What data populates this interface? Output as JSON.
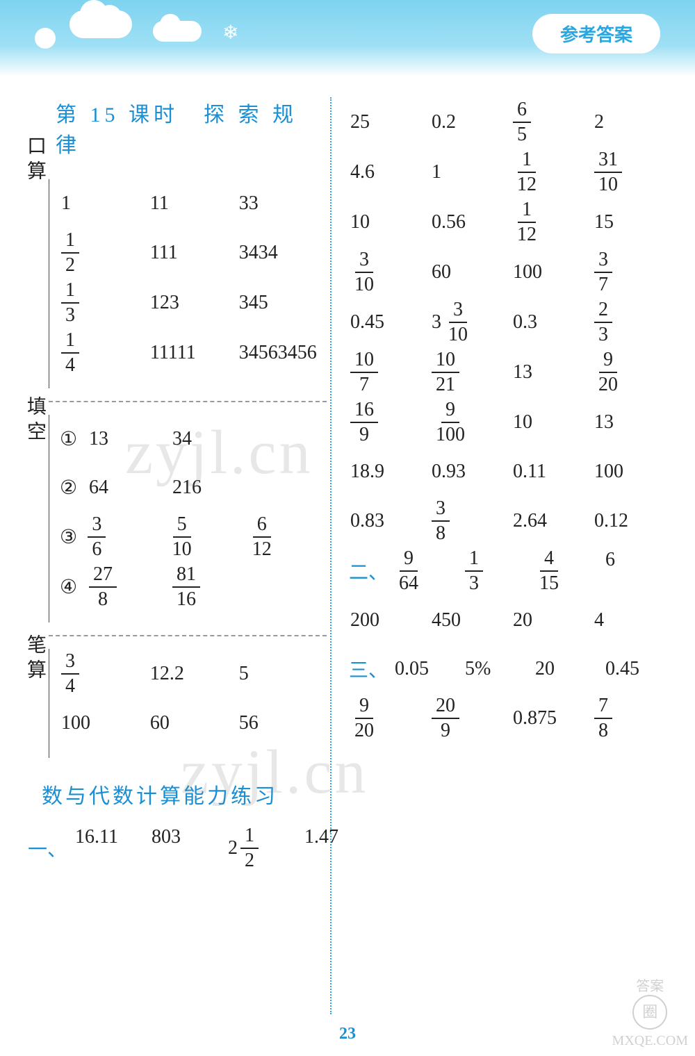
{
  "header": {
    "badge": "参考答案"
  },
  "left": {
    "lesson_title": "第 15 课时　探 索 规 律",
    "labels": {
      "kousuan": "口算",
      "tiankong": "填空",
      "bisuan": "笔算"
    },
    "kousuan": [
      [
        "1",
        "11",
        "33"
      ],
      [
        {
          "n": "1",
          "d": "2"
        },
        "111",
        "3434"
      ],
      [
        {
          "n": "1",
          "d": "3"
        },
        "123",
        "345"
      ],
      [
        {
          "n": "1",
          "d": "4"
        },
        "11111",
        "34563456"
      ]
    ],
    "tiankong": [
      {
        "marker": "①",
        "cells": [
          "13",
          "34"
        ]
      },
      {
        "marker": "②",
        "cells": [
          "64",
          "216"
        ]
      },
      {
        "marker": "③",
        "cells": [
          {
            "n": "3",
            "d": "6"
          },
          {
            "n": "5",
            "d": "10"
          },
          {
            "n": "6",
            "d": "12"
          }
        ]
      },
      {
        "marker": "④",
        "cells": [
          {
            "n": "27",
            "d": "8"
          },
          {
            "n": "81",
            "d": "16"
          }
        ]
      }
    ],
    "bisuan": [
      [
        {
          "n": "3",
          "d": "4"
        },
        "12.2",
        "5"
      ],
      [
        "100",
        "60",
        "56"
      ]
    ],
    "sub_title": "数与代数计算能力练习",
    "bottom": {
      "label": "一、",
      "cells": [
        "16.11",
        "803",
        {
          "w": "2",
          "n": "1",
          "d": "2"
        },
        "1.47"
      ]
    }
  },
  "right": {
    "grid": [
      [
        "25",
        "0.2",
        {
          "n": "6",
          "d": "5"
        },
        "2"
      ],
      [
        "4.6",
        "1",
        {
          "n": "1",
          "d": "12"
        },
        {
          "n": "31",
          "d": "10"
        }
      ],
      [
        "10",
        "0.56",
        {
          "n": "1",
          "d": "12"
        },
        "15"
      ],
      [
        {
          "n": "3",
          "d": "10"
        },
        "60",
        "100",
        {
          "n": "3",
          "d": "7"
        }
      ],
      [
        "0.45",
        {
          "w": "3",
          "n": "3",
          "d": "10"
        },
        "0.3",
        {
          "n": "2",
          "d": "3"
        }
      ],
      [
        {
          "n": "10",
          "d": "7"
        },
        {
          "n": "10",
          "d": "21"
        },
        "13",
        {
          "n": "9",
          "d": "20"
        }
      ],
      [
        {
          "n": "16",
          "d": "9"
        },
        {
          "n": "9",
          "d": "100"
        },
        "10",
        "13"
      ],
      [
        "18.9",
        "0.93",
        "0.11",
        "100"
      ],
      [
        "0.83",
        {
          "n": "3",
          "d": "8"
        },
        "2.64",
        "0.12"
      ]
    ],
    "two": {
      "label": "二、",
      "cells": [
        {
          "n": "9",
          "d": "64"
        },
        {
          "n": "1",
          "d": "3"
        },
        {
          "n": "4",
          "d": "15"
        },
        "6"
      ]
    },
    "extra": [
      "200",
      "450",
      "20",
      "4"
    ],
    "three": {
      "label": "三、",
      "cells": [
        "0.05",
        "5%",
        "20",
        "0.45"
      ]
    },
    "last": [
      {
        "n": "9",
        "d": "20"
      },
      {
        "n": "20",
        "d": "9"
      },
      "0.875",
      {
        "n": "7",
        "d": "8"
      }
    ]
  },
  "page_number": "23",
  "watermarks": [
    "zyjl.cn",
    "zyjl.cn"
  ],
  "corner": {
    "top": "答案",
    "sym": "圈",
    "bottom": "MXQE.COM"
  }
}
